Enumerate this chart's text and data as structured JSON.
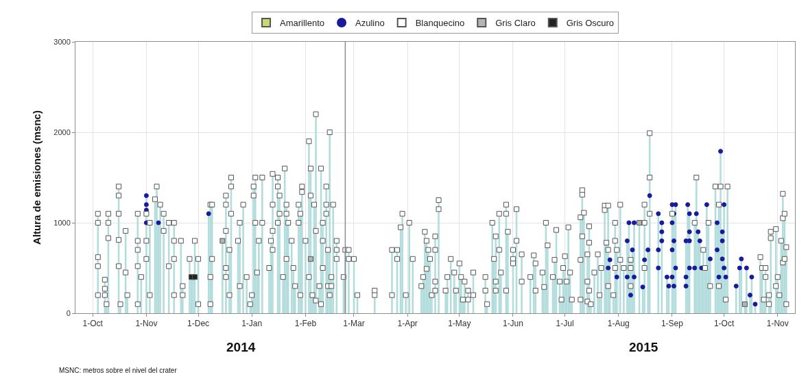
{
  "chart_data": {
    "type": "lollipop",
    "ylabel": "Altura de emisiones (msnc)",
    "annotations": [
      "2014",
      "2015",
      "MSNC: metros sobre el nivel del crater"
    ],
    "xlim": [
      "2014-09-21",
      "2015-11-11"
    ],
    "xticks": [
      {
        "value": "2014-10-01",
        "label": "1-Oct"
      },
      {
        "value": "2014-11-01",
        "label": "1-Nov"
      },
      {
        "value": "2014-12-01",
        "label": "1-Dec"
      },
      {
        "value": "2015-01-01",
        "label": "1-Jan"
      },
      {
        "value": "2015-02-01",
        "label": "1-Feb"
      },
      {
        "value": "2015-03-01",
        "label": "1-Mar"
      },
      {
        "value": "2015-04-01",
        "label": "1-Apr"
      },
      {
        "value": "2015-05-01",
        "label": "1-May"
      },
      {
        "value": "2015-06-01",
        "label": "1-Jun"
      },
      {
        "value": "2015-07-01",
        "label": "1-Jul"
      },
      {
        "value": "2015-08-01",
        "label": "1-Aug"
      },
      {
        "value": "2015-09-01",
        "label": "1-Sep"
      },
      {
        "value": "2015-10-01",
        "label": "1-Oct"
      },
      {
        "value": "2015-11-01",
        "label": "1-Nov"
      }
    ],
    "ylim": [
      0,
      3000
    ],
    "yticks": [
      0,
      1000,
      2000,
      3000
    ],
    "grid": true,
    "legend": "top",
    "ref_lines": [
      {
        "axis": "x",
        "value": "2015-02-24",
        "color": "#8c8c8c"
      }
    ],
    "series": [
      {
        "name": "Amarillento",
        "color": "#c9d873",
        "marker": "square"
      },
      {
        "name": "Azulino",
        "color": "#1a1a9c",
        "marker": "circle",
        "x": [
          "2014-11-01",
          "2014-11-01",
          "2014-11-01",
          "2014-11-01",
          "2014-11-08",
          "2014-12-07",
          "2015-07-26",
          "2015-07-27",
          "2015-07-31",
          "2015-08-06",
          "2015-08-06",
          "2015-08-07",
          "2015-08-08",
          "2015-08-09",
          "2015-08-10",
          "2015-08-10",
          "2015-08-15",
          "2015-08-16",
          "2015-08-18",
          "2015-08-19",
          "2015-08-24",
          "2015-08-24",
          "2015-08-24",
          "2015-08-26",
          "2015-08-26",
          "2015-08-26",
          "2015-08-29",
          "2015-08-30",
          "2015-09-01",
          "2015-09-01",
          "2015-09-01",
          "2015-09-01",
          "2015-09-02",
          "2015-09-02",
          "2015-09-02",
          "2015-09-03",
          "2015-09-03",
          "2015-09-09",
          "2015-09-09",
          "2015-09-09",
          "2015-09-10",
          "2015-09-11",
          "2015-09-11",
          "2015-09-11",
          "2015-09-11",
          "2015-09-14",
          "2015-09-15",
          "2015-09-16",
          "2015-09-17",
          "2015-09-18",
          "2015-09-21",
          "2015-09-23",
          "2015-09-27",
          "2015-09-27",
          "2015-09-28",
          "2015-09-29",
          "2015-09-30",
          "2015-09-30",
          "2015-09-30",
          "2015-10-01",
          "2015-10-01",
          "2015-10-02",
          "2015-10-08",
          "2015-10-10",
          "2015-10-11",
          "2015-10-14",
          "2015-10-16",
          "2015-10-17",
          "2015-10-19"
        ],
        "values": [
          1300,
          1200,
          1140,
          1000,
          1000,
          1100,
          500,
          590,
          400,
          800,
          400,
          1000,
          200,
          700,
          1000,
          400,
          290,
          590,
          700,
          1300,
          1100,
          700,
          500,
          1000,
          900,
          800,
          400,
          300,
          1200,
          1000,
          700,
          400,
          1100,
          800,
          300,
          1200,
          500,
          800,
          400,
          300,
          1200,
          1100,
          900,
          800,
          500,
          500,
          1100,
          900,
          800,
          500,
          1200,
          600,
          1000,
          700,
          400,
          1790,
          900,
          800,
          600,
          1200,
          500,
          400,
          300,
          500,
          600,
          500,
          200,
          400,
          100
        ]
      },
      {
        "name": "Blanquecino",
        "color": "#ffffff",
        "marker": "square",
        "x": [
          "2014-10-04",
          "2014-10-04",
          "2014-10-04",
          "2014-10-04",
          "2014-10-04",
          "2014-10-08",
          "2014-10-08",
          "2014-10-08",
          "2014-10-09",
          "2014-10-10",
          "2014-10-10",
          "2014-10-10",
          "2014-10-16",
          "2014-10-16",
          "2014-10-16",
          "2014-10-16",
          "2014-10-16",
          "2014-10-17",
          "2014-10-20",
          "2014-10-20",
          "2014-10-21",
          "2014-10-27",
          "2014-10-27",
          "2014-10-27",
          "2014-10-27",
          "2014-10-27",
          "2014-10-29",
          "2014-11-01",
          "2014-11-01",
          "2014-11-01",
          "2014-11-03",
          "2014-11-03",
          "2014-11-06",
          "2014-11-07",
          "2014-11-09",
          "2014-11-11",
          "2014-11-11",
          "2014-11-14",
          "2014-11-14",
          "2014-11-17",
          "2014-11-17",
          "2014-11-17",
          "2014-11-17",
          "2014-11-21",
          "2014-11-22",
          "2014-11-22",
          "2014-11-26",
          "2014-11-28",
          "2014-11-29",
          "2014-12-01",
          "2014-12-01",
          "2014-12-08",
          "2014-12-08",
          "2014-12-08",
          "2014-12-09",
          "2014-12-09",
          "2014-12-17",
          "2014-12-17",
          "2014-12-17",
          "2014-12-17",
          "2014-12-17",
          "2014-12-19",
          "2014-12-19",
          "2014-12-20",
          "2014-12-20",
          "2014-12-20",
          "2014-12-24",
          "2014-12-25",
          "2014-12-25",
          "2014-12-27",
          "2014-12-29",
          "2014-12-31",
          "2015-01-01",
          "2015-01-02",
          "2015-01-02",
          "2015-01-03",
          "2015-01-03",
          "2015-01-04",
          "2015-01-05",
          "2015-01-07",
          "2015-01-07",
          "2015-01-11",
          "2015-01-12",
          "2015-01-13",
          "2015-01-13",
          "2015-01-13",
          "2015-01-13",
          "2015-01-16",
          "2015-01-16",
          "2015-01-16",
          "2015-01-17",
          "2015-01-17",
          "2015-01-19",
          "2015-01-20",
          "2015-01-21",
          "2015-01-21",
          "2015-01-21",
          "2015-01-22",
          "2015-01-24",
          "2015-01-25",
          "2015-01-26",
          "2015-01-28",
          "2015-01-28",
          "2015-01-29",
          "2015-01-29",
          "2015-01-30",
          "2015-01-30",
          "2015-02-01",
          "2015-02-03",
          "2015-02-03",
          "2015-02-04",
          "2015-02-04",
          "2015-02-05",
          "2015-02-06",
          "2015-02-07",
          "2015-02-07",
          "2015-02-07",
          "2015-02-09",
          "2015-02-10",
          "2015-02-10",
          "2015-02-11",
          "2015-02-11",
          "2015-02-11",
          "2015-02-13",
          "2015-02-13",
          "2015-02-13",
          "2015-02-14",
          "2015-02-14",
          "2015-02-15",
          "2015-02-15",
          "2015-02-16",
          "2015-02-16",
          "2015-02-17",
          "2015-02-19",
          "2015-02-19",
          "2015-02-19",
          "2015-02-23",
          "2015-02-24",
          "2015-02-26",
          "2015-02-26",
          "2015-03-01",
          "2015-03-03",
          "2015-03-13",
          "2015-03-13",
          "2015-03-23",
          "2015-03-23",
          "2015-03-26",
          "2015-03-26",
          "2015-03-28",
          "2015-03-29",
          "2015-03-31",
          "2015-04-02",
          "2015-04-04",
          "2015-04-09",
          "2015-04-10",
          "2015-04-11",
          "2015-04-12",
          "2015-04-12",
          "2015-04-13",
          "2015-04-14",
          "2015-04-15",
          "2015-04-17",
          "2015-04-17",
          "2015-04-17",
          "2015-04-17",
          "2015-04-19",
          "2015-04-19",
          "2015-04-23",
          "2015-04-24",
          "2015-04-26",
          "2015-04-28",
          "2015-04-29",
          "2015-05-01",
          "2015-05-02",
          "2015-05-03",
          "2015-05-04",
          "2015-05-06",
          "2015-05-06",
          "2015-05-09",
          "2015-05-09",
          "2015-05-16",
          "2015-05-16",
          "2015-05-17",
          "2015-05-20",
          "2015-05-21",
          "2015-05-22",
          "2015-05-22",
          "2015-05-22",
          "2015-05-24",
          "2015-05-24",
          "2015-05-25",
          "2015-05-28",
          "2015-05-28",
          "2015-05-28",
          "2015-05-29",
          "2015-06-01",
          "2015-06-01",
          "2015-06-01",
          "2015-06-03",
          "2015-06-03",
          "2015-06-06",
          "2015-06-06",
          "2015-06-11",
          "2015-06-13",
          "2015-06-14",
          "2015-06-14",
          "2015-06-18",
          "2015-06-19",
          "2015-06-20",
          "2015-06-21",
          "2015-06-24",
          "2015-06-25",
          "2015-06-26",
          "2015-06-28",
          "2015-06-29",
          "2015-06-30",
          "2015-07-01",
          "2015-07-02",
          "2015-07-03",
          "2015-07-04",
          "2015-07-05",
          "2015-07-10",
          "2015-07-10",
          "2015-07-10",
          "2015-07-11",
          "2015-07-11",
          "2015-07-11",
          "2015-07-12",
          "2015-07-14",
          "2015-07-14",
          "2015-07-14",
          "2015-07-15",
          "2015-07-15",
          "2015-07-15",
          "2015-07-16",
          "2015-07-18",
          "2015-07-20",
          "2015-07-21",
          "2015-07-22",
          "2015-07-24",
          "2015-07-24",
          "2015-07-25",
          "2015-07-26",
          "2015-07-26",
          "2015-07-26",
          "2015-07-29",
          "2015-07-30",
          "2015-07-30",
          "2015-07-30",
          "2015-07-31",
          "2015-08-02",
          "2015-08-02",
          "2015-08-04",
          "2015-08-08",
          "2015-08-08",
          "2015-08-08",
          "2015-08-16",
          "2015-08-16",
          "2015-08-16",
          "2015-08-19",
          "2015-08-19",
          "2015-08-19",
          "2015-09-01",
          "2015-09-14",
          "2015-09-15",
          "2015-09-19",
          "2015-09-20",
          "2015-09-22",
          "2015-09-23",
          "2015-09-26",
          "2015-09-28",
          "2015-09-28",
          "2015-09-29",
          "2015-10-02",
          "2015-10-03",
          "2015-10-22",
          "2015-10-23",
          "2015-10-24",
          "2015-10-25",
          "2015-10-25",
          "2015-10-27",
          "2015-10-27",
          "2015-10-28",
          "2015-10-28",
          "2015-10-31",
          "2015-10-31",
          "2015-11-01",
          "2015-11-02",
          "2015-11-03",
          "2015-11-04",
          "2015-11-04",
          "2015-11-04",
          "2015-11-05",
          "2015-11-05",
          "2015-11-06",
          "2015-11-06"
        ],
        "values": [
          1100,
          1000,
          620,
          520,
          200,
          370,
          270,
          200,
          100,
          1100,
          1000,
          830,
          1400,
          1300,
          1100,
          810,
          520,
          100,
          910,
          450,
          200,
          1100,
          800,
          700,
          520,
          100,
          400,
          1100,
          800,
          600,
          1000,
          200,
          1260,
          1400,
          1200,
          1100,
          910,
          1000,
          520,
          1000,
          800,
          600,
          200,
          800,
          300,
          200,
          600,
          400,
          800,
          600,
          100,
          1200,
          400,
          100,
          1200,
          600,
          1300,
          1200,
          910,
          500,
          400,
          700,
          200,
          1500,
          1400,
          1100,
          800,
          1000,
          300,
          1200,
          400,
          100,
          200,
          1400,
          1300,
          1500,
          1000,
          450,
          800,
          1500,
          1000,
          500,
          800,
          1540,
          1200,
          910,
          700,
          1500,
          1400,
          1000,
          1300,
          1100,
          400,
          1600,
          1200,
          1100,
          600,
          1000,
          800,
          500,
          300,
          1200,
          1000,
          1100,
          200,
          1400,
          1340,
          800,
          1900,
          400,
          1600,
          1300,
          200,
          1200,
          2200,
          910,
          140,
          300,
          1600,
          100,
          1000,
          800,
          500,
          1400,
          1200,
          1100,
          700,
          300,
          2000,
          200,
          400,
          300,
          1200,
          800,
          700,
          600,
          400,
          700,
          700,
          600,
          600,
          200,
          250,
          200,
          700,
          200,
          700,
          600,
          950,
          1100,
          200,
          1000,
          600,
          300,
          400,
          900,
          800,
          490,
          700,
          600,
          200,
          850,
          700,
          350,
          250,
          1250,
          1150,
          250,
          400,
          600,
          450,
          250,
          550,
          400,
          150,
          350,
          250,
          150,
          450,
          200,
          400,
          250,
          100,
          1000,
          600,
          850,
          350,
          250,
          1100,
          700,
          450,
          1200,
          1100,
          250,
          900,
          700,
          600,
          550,
          1150,
          800,
          650,
          350,
          400,
          640,
          550,
          250,
          450,
          290,
          1000,
          750,
          400,
          590,
          920,
          350,
          150,
          500,
          630,
          350,
          950,
          450,
          150,
          1060,
          590,
          150,
          1360,
          1310,
          850,
          1110,
          650,
          350,
          130,
          960,
          780,
          250,
          100,
          450,
          650,
          200,
          500,
          1190,
          1140,
          780,
          1190,
          700,
          300,
          200,
          1000,
          800,
          500,
          700,
          1200,
          590,
          500,
          590,
          500,
          300,
          1200,
          1000,
          500,
          1990,
          1500,
          1100,
          1100,
          1000,
          1500,
          700,
          500,
          1000,
          300,
          1400,
          1200,
          300,
          1400,
          150,
          1400,
          620,
          500,
          150,
          500,
          400,
          200,
          100,
          900,
          830,
          930,
          300,
          400,
          200,
          800,
          1320,
          1050,
          560,
          1100,
          600,
          730,
          100
        ]
      },
      {
        "name": "Gris Claro",
        "color": "#b4b4b4",
        "marker": "square",
        "x": [
          "2014-12-15",
          "2015-02-04",
          "2015-08-13",
          "2015-10-13"
        ],
        "values": [
          800,
          600,
          1000,
          100
        ]
      },
      {
        "name": "Gris Oscuro",
        "color": "#222222",
        "marker": "square",
        "x": [
          "2014-11-27",
          "2014-11-29"
        ],
        "values": [
          400,
          400
        ]
      }
    ]
  }
}
